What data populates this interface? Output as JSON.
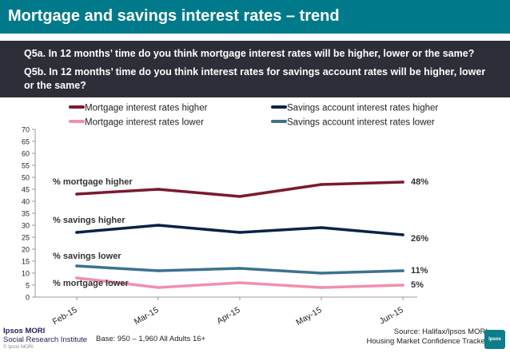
{
  "title": "Mortgage and savings interest rates – trend",
  "questions": {
    "q5a": "Q5a. In 12 months’ time do you think mortgage interest rates will be higher, lower or the same?",
    "q5b": "Q5b. In 12 months’ time do you think interest rates for savings account rates will be higher, lower or the same?"
  },
  "footer": {
    "logo_line1": "Ipsos MORI",
    "logo_line2": "Social Research Institute",
    "copyright": "© Ipsos MORI",
    "base": "Base: 950 – 1,960 All Adults 16+",
    "source_line1": "Source: Halifax/Ipsos MORI",
    "source_line2": "Housing Market Confidence Tracker",
    "badge": "Ipsos"
  },
  "chart_data": {
    "type": "line",
    "categories": [
      "Feb-15",
      "Mar-15",
      "Apr-15",
      "May-15",
      "Jun-15"
    ],
    "ylim": [
      0,
      70
    ],
    "yticks": [
      0,
      5,
      10,
      15,
      20,
      25,
      30,
      35,
      40,
      45,
      50,
      55,
      60,
      65,
      70
    ],
    "legend_position": "top",
    "grid": false,
    "series": [
      {
        "name": "Mortgage interest rates higher",
        "color": "#7a1a2e",
        "values": [
          43,
          45,
          42,
          47,
          48
        ],
        "label": "% mortgage higher",
        "end_label": "48%"
      },
      {
        "name": "Mortgage interest rates lower",
        "color": "#f08fb0",
        "values": [
          8,
          4,
          6,
          4,
          5
        ],
        "label": "% mortgage lower",
        "end_label": "5%"
      },
      {
        "name": "Savings account interest rates higher",
        "color": "#0b2248",
        "values": [
          27,
          30,
          27,
          29,
          26
        ],
        "label": "% savings higher",
        "end_label": "26%"
      },
      {
        "name": "Savings account interest rates lower",
        "color": "#3d7190",
        "values": [
          13,
          11,
          12,
          10,
          11
        ],
        "label": "% savings lower",
        "end_label": "11%"
      }
    ]
  }
}
